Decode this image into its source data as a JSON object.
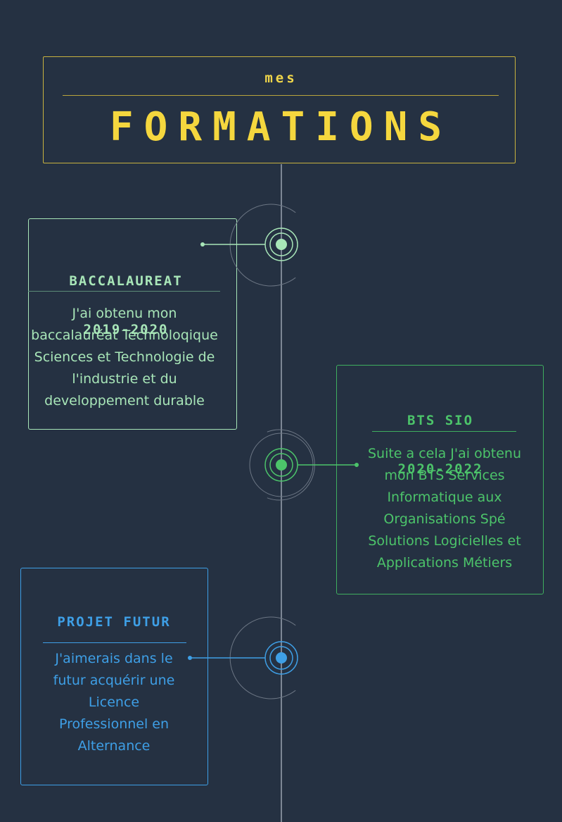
{
  "header": {
    "small": "MES",
    "big": "FORMATIONS"
  },
  "items": [
    {
      "title_line1": "BACCALAUREAT",
      "title_line2": "2019-2020",
      "text": "J'ai obtenu mon baccalauréat Technoloqique Sciences et Technologie de l'industrie et du developpement durable",
      "color": "#a8e6b8"
    },
    {
      "title_line1": "BTS SIO",
      "title_line2": "2020-2022",
      "text": "Suite a cela J'ai obtenu mon BTS Services Informatique aux Organisations Spé Solutions Logicielles et Applications Métiers",
      "color": "#4cc46a"
    },
    {
      "title_line1": "PROJET FUTUR",
      "text": "J'aimerais dans le futur acquérir une Licence Professionnel en Alternance",
      "color": "#3e9fe6"
    }
  ]
}
